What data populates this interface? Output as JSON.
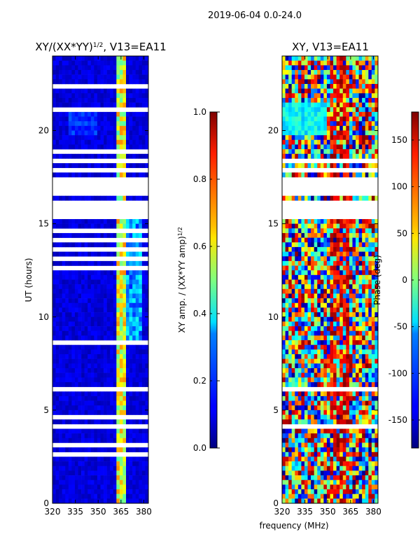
{
  "figure": {
    "suptitle": "2019-06-04 0.0-24.0",
    "xlabel_shared": "frequency (MHz)"
  },
  "chart_data": [
    {
      "type": "heatmap",
      "title": "XY/(XX*YY)",
      "title_exponent": "1/2",
      "title_suffix": ", V13=EA11",
      "xlabel": "",
      "ylabel": "UT (hours)",
      "xlim": [
        320,
        383
      ],
      "ylim": [
        0,
        24
      ],
      "xticks": [
        320,
        335,
        350,
        365,
        380
      ],
      "yticks": [
        0,
        5,
        10,
        15,
        20
      ],
      "colormap": "jet",
      "colorbar": {
        "label": "XY amp. / (XX*YY amp)",
        "label_exponent": "1/2",
        "vmin": 0.0,
        "vmax": 1.0,
        "ticks": [
          "0.0",
          "0.2",
          "0.4",
          "0.6",
          "0.8",
          "1.0"
        ]
      },
      "gaps_hours": [
        [
          16.4,
          17.4
        ],
        [
          15.35,
          16.2
        ],
        [
          8.4,
          8.7
        ],
        [
          0.45,
          0.6
        ],
        [
          1.2,
          1.35
        ],
        [
          1.9,
          2.1
        ],
        [
          2.5,
          2.7
        ],
        [
          3.0,
          3.2
        ],
        [
          3.5,
          3.6
        ],
        [
          4.1,
          4.2
        ],
        [
          4.6,
          4.75
        ],
        [
          5.2,
          5.3
        ],
        [
          6.1,
          6.3
        ],
        [
          6.7,
          6.85
        ],
        [
          7.2,
          7.3
        ],
        [
          7.7,
          7.85
        ],
        [
          11.4,
          11.6
        ],
        [
          12.0,
          12.1
        ],
        [
          12.5,
          12.65
        ],
        [
          13.0,
          13.15
        ],
        [
          13.6,
          13.7
        ],
        [
          14.1,
          14.2
        ],
        [
          14.6,
          14.7
        ],
        [
          17.8,
          17.9
        ],
        [
          18.3,
          18.45
        ],
        [
          18.8,
          18.9
        ],
        [
          19.4,
          19.5
        ],
        [
          20.2,
          20.3
        ],
        [
          21.1,
          21.2
        ],
        [
          21.7,
          21.8
        ],
        [
          22.3,
          22.4
        ],
        [
          23.0,
          23.1
        ],
        [
          23.4,
          23.5
        ]
      ],
      "bright_bands_mhz": [
        [
          362,
          366
        ],
        [
          366,
          369
        ]
      ]
    },
    {
      "type": "heatmap",
      "title": "XY, V13=EA11",
      "xlabel": "",
      "ylabel": "",
      "xlim": [
        320,
        383
      ],
      "ylim": [
        0,
        24
      ],
      "xticks": [
        320,
        335,
        350,
        365,
        380
      ],
      "yticks": [
        0,
        5,
        10,
        15,
        20
      ],
      "colormap": "jet",
      "colorbar": {
        "label": "Phase (deg)",
        "vmin": -180,
        "vmax": 180,
        "ticks": [
          "-150",
          "-100",
          "-50",
          "0",
          "50",
          "100",
          "150"
        ]
      },
      "gaps_hours": [
        [
          16.5,
          17.4
        ],
        [
          15.35,
          16.2
        ],
        [
          8.4,
          8.6
        ],
        [
          0.45,
          0.6
        ],
        [
          1.2,
          1.35
        ],
        [
          1.9,
          2.0
        ],
        [
          2.5,
          2.6
        ],
        [
          3.0,
          3.1
        ],
        [
          3.5,
          3.6
        ],
        [
          4.1,
          4.2
        ],
        [
          6.1,
          6.25
        ],
        [
          11.4,
          11.55
        ],
        [
          17.8,
          17.9
        ],
        [
          18.3,
          18.4
        ]
      ]
    }
  ]
}
